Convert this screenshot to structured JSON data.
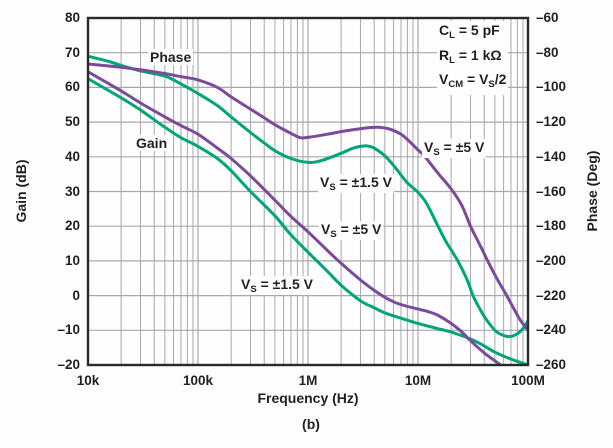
{
  "figure": {
    "caption": "(b)"
  },
  "chart_data": {
    "type": "line",
    "title": "",
    "xlabel": "Frequency (Hz)",
    "x_axis": {
      "scale": "log",
      "min": 10000,
      "max": 100000000,
      "ticks": [
        {
          "value": 10000,
          "label": "10k"
        },
        {
          "value": 100000,
          "label": "100k"
        },
        {
          "value": 1000000,
          "label": "1M"
        },
        {
          "value": 10000000,
          "label": "10M"
        },
        {
          "value": 100000000,
          "label": "100M"
        }
      ],
      "minor_gridlines": true
    },
    "left_axis": {
      "label": "Gain (dB)",
      "min": -20,
      "max": 80,
      "step": 10,
      "tick_labels": [
        "80",
        "70",
        "60",
        "50",
        "40",
        "30",
        "20",
        "10",
        "0",
        "–10",
        "–20"
      ]
    },
    "right_axis": {
      "label": "Phase (Deg)",
      "min": -260,
      "max": -60,
      "step": 20,
      "tick_labels": [
        "–60",
        "–80",
        "–100",
        "–120",
        "–140",
        "–160",
        "–180",
        "–200",
        "–220",
        "–240",
        "–260"
      ]
    },
    "grid": true,
    "legend_position": "inline-labels",
    "colors": {
      "vs5": "#7b4a9b",
      "vs1p5": "#00a578",
      "grid": "#a6a8ab",
      "frame": "#2b2a29",
      "text": "#231f20"
    },
    "inline_labels": {
      "phase": "Phase",
      "gain": "Gain"
    },
    "conditions": [
      {
        "segments": [
          {
            "t": "C"
          },
          {
            "t": "L",
            "sub": true
          },
          {
            "t": " = 5 pF"
          }
        ]
      },
      {
        "segments": [
          {
            "t": "R"
          },
          {
            "t": "L",
            "sub": true
          },
          {
            "t": " = 1 kΩ"
          }
        ]
      },
      {
        "segments": [
          {
            "t": "V"
          },
          {
            "t": "CM",
            "sub": true
          },
          {
            "t": " = V"
          },
          {
            "t": "S",
            "sub": true
          },
          {
            "t": "/2"
          }
        ]
      }
    ],
    "series": [
      {
        "id": "gain-vs1p5",
        "name": "Gain, VS = ±1.5 V",
        "axis": "gain",
        "color_key": "vs1p5",
        "label_segments": [
          {
            "t": "V"
          },
          {
            "t": "S",
            "sub": true
          },
          {
            "t": " = ±1.5 V"
          }
        ],
        "points": [
          [
            10000,
            62.5
          ],
          [
            20000,
            57
          ],
          [
            30000,
            53.5
          ],
          [
            50000,
            48.5
          ],
          [
            70000,
            45.5
          ],
          [
            100000,
            43
          ],
          [
            150000,
            39.5
          ],
          [
            200000,
            36
          ],
          [
            300000,
            30
          ],
          [
            500000,
            23
          ],
          [
            700000,
            17.5
          ],
          [
            1000000,
            12.5
          ],
          [
            1500000,
            7
          ],
          [
            2000000,
            3
          ],
          [
            3000000,
            -1.5
          ],
          [
            4000000,
            -3.5
          ],
          [
            5000000,
            -5
          ],
          [
            7000000,
            -6.5
          ],
          [
            10000000,
            -8
          ],
          [
            15000000,
            -9.5
          ],
          [
            20000000,
            -10.5
          ],
          [
            30000000,
            -12.5
          ],
          [
            40000000,
            -14.5
          ],
          [
            50000000,
            -16.3
          ],
          [
            70000000,
            -18.3
          ],
          [
            100000000,
            -20
          ]
        ]
      },
      {
        "id": "gain-vs5",
        "name": "Gain, VS = ±5 V",
        "axis": "gain",
        "color_key": "vs5",
        "label_segments": [
          {
            "t": "V"
          },
          {
            "t": "S",
            "sub": true
          },
          {
            "t": " = ±5 V"
          }
        ],
        "points": [
          [
            10000,
            64.5
          ],
          [
            20000,
            59
          ],
          [
            30000,
            55.5
          ],
          [
            50000,
            51.5
          ],
          [
            70000,
            49
          ],
          [
            100000,
            46.5
          ],
          [
            150000,
            42.5
          ],
          [
            200000,
            39.5
          ],
          [
            300000,
            34.5
          ],
          [
            500000,
            27.5
          ],
          [
            700000,
            22.8
          ],
          [
            1000000,
            18.4
          ],
          [
            1500000,
            13
          ],
          [
            2000000,
            9.3
          ],
          [
            3000000,
            4.5
          ],
          [
            4000000,
            1.5
          ],
          [
            5000000,
            -0.5
          ],
          [
            6000000,
            -1.8
          ],
          [
            7000000,
            -2.6
          ],
          [
            8000000,
            -3.1
          ],
          [
            10000000,
            -3.9
          ],
          [
            12000000,
            -4.5
          ],
          [
            15000000,
            -5.6
          ],
          [
            20000000,
            -8
          ],
          [
            25000000,
            -10.5
          ],
          [
            30000000,
            -13
          ],
          [
            40000000,
            -16.5
          ],
          [
            50000000,
            -18.8
          ],
          [
            60000000,
            -20.6
          ]
        ]
      },
      {
        "id": "phase-vs1p5",
        "name": "Phase, VS = ±1.5 V",
        "axis": "phase",
        "color_key": "vs1p5",
        "label_segments": [
          {
            "t": "V"
          },
          {
            "t": "S",
            "sub": true
          },
          {
            "t": " = ±1.5 V"
          }
        ],
        "points": [
          [
            10000,
            -82
          ],
          [
            15000,
            -84.8
          ],
          [
            20000,
            -87.3
          ],
          [
            30000,
            -90.5
          ],
          [
            50000,
            -93.5
          ],
          [
            70000,
            -98
          ],
          [
            100000,
            -103.5
          ],
          [
            150000,
            -110.5
          ],
          [
            200000,
            -117
          ],
          [
            300000,
            -126
          ],
          [
            400000,
            -132
          ],
          [
            500000,
            -136.5
          ],
          [
            700000,
            -141
          ],
          [
            1000000,
            -143.2
          ],
          [
            1300000,
            -142.3
          ],
          [
            2000000,
            -138
          ],
          [
            2500000,
            -135.3
          ],
          [
            3000000,
            -134
          ],
          [
            3500000,
            -133.8
          ],
          [
            4000000,
            -135
          ],
          [
            5000000,
            -139.5
          ],
          [
            6000000,
            -145
          ],
          [
            7000000,
            -150.5
          ],
          [
            8000000,
            -155
          ],
          [
            10000000,
            -160.5
          ],
          [
            12000000,
            -167
          ],
          [
            15200000,
            -180
          ],
          [
            18000000,
            -189
          ],
          [
            23000000,
            -200
          ],
          [
            28000000,
            -211
          ],
          [
            31600000,
            -220
          ],
          [
            36000000,
            -227
          ],
          [
            41000000,
            -233
          ],
          [
            50000000,
            -240
          ],
          [
            60000000,
            -243
          ],
          [
            70000000,
            -243.5
          ],
          [
            80000000,
            -242
          ],
          [
            90000000,
            -239
          ],
          [
            100000000,
            -234.5
          ]
        ]
      },
      {
        "id": "phase-vs5",
        "name": "Phase, VS = ±5 V",
        "axis": "phase",
        "color_key": "vs5",
        "label_segments": [
          {
            "t": "V"
          },
          {
            "t": "S",
            "sub": true
          },
          {
            "t": " = ±5 V"
          }
        ],
        "points": [
          [
            10000,
            -86.5
          ],
          [
            15000,
            -87.6
          ],
          [
            20000,
            -88.4
          ],
          [
            30000,
            -89.8
          ],
          [
            50000,
            -92
          ],
          [
            70000,
            -93.8
          ],
          [
            100000,
            -95.7
          ],
          [
            150000,
            -100
          ],
          [
            200000,
            -105.5
          ],
          [
            300000,
            -112.5
          ],
          [
            400000,
            -117.5
          ],
          [
            500000,
            -121.5
          ],
          [
            700000,
            -126.5
          ],
          [
            850000,
            -129
          ],
          [
            1000000,
            -128.8
          ],
          [
            1500000,
            -127
          ],
          [
            2000000,
            -125.5
          ],
          [
            3000000,
            -123.8
          ],
          [
            4300000,
            -123
          ],
          [
            5500000,
            -124
          ],
          [
            7000000,
            -127
          ],
          [
            8000000,
            -130
          ],
          [
            10000000,
            -136
          ],
          [
            11600000,
            -140
          ],
          [
            15000000,
            -149
          ],
          [
            20000000,
            -158.5
          ],
          [
            25000000,
            -168
          ],
          [
            30000000,
            -180
          ],
          [
            36000000,
            -190
          ],
          [
            43000000,
            -200
          ],
          [
            52000000,
            -210
          ],
          [
            64000000,
            -220
          ],
          [
            75000000,
            -228
          ],
          [
            85000000,
            -234
          ],
          [
            100000000,
            -240
          ]
        ]
      }
    ]
  }
}
